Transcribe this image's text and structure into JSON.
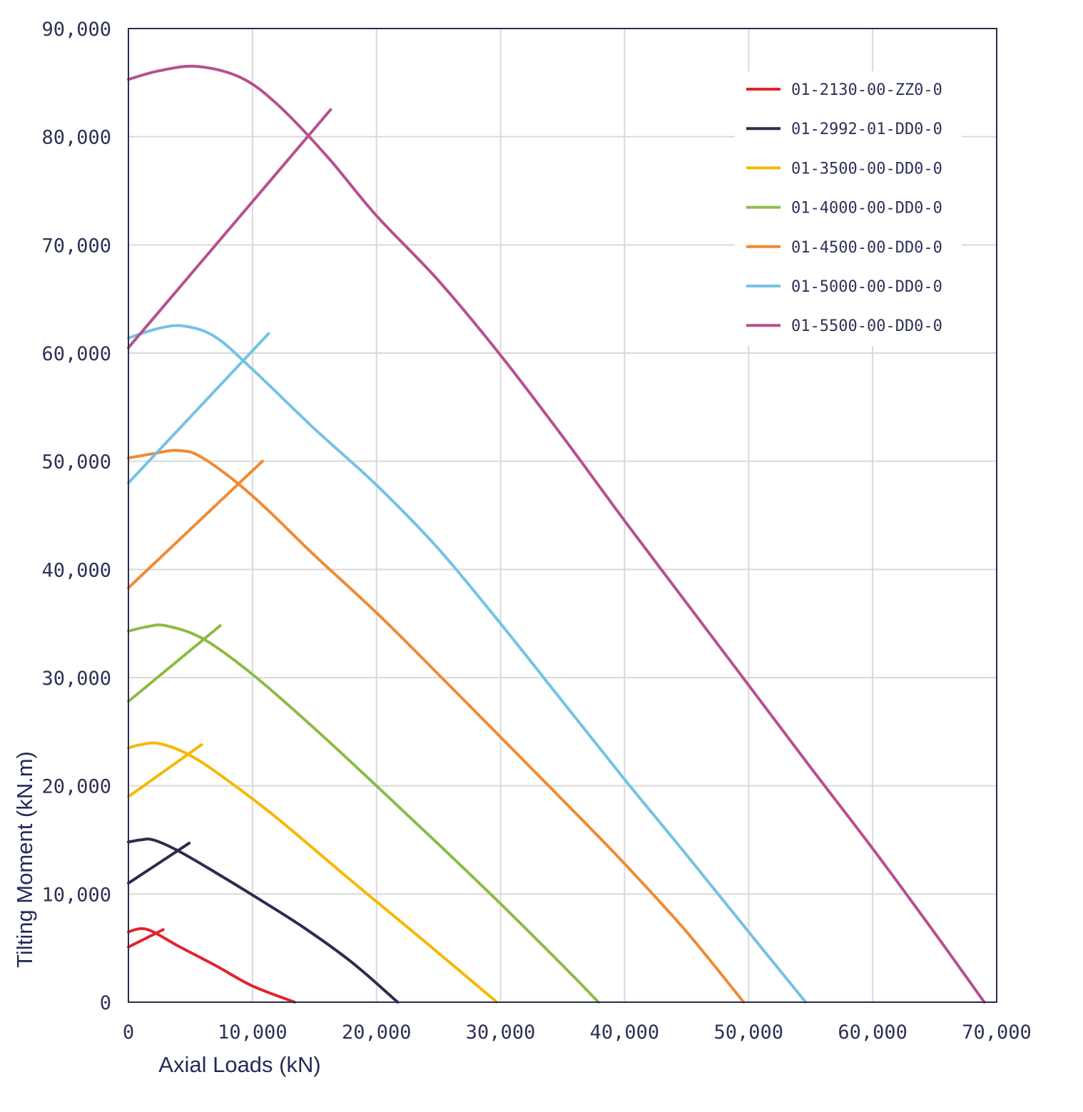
{
  "chart_data": {
    "type": "line",
    "title": "",
    "xlabel": "Axial Loads (kN)",
    "ylabel": "Tilting Moment (kN.m)",
    "xlim": [
      0,
      70000
    ],
    "ylim": [
      0,
      90000
    ],
    "xticks": [
      0,
      10000,
      20000,
      30000,
      40000,
      50000,
      60000,
      70000
    ],
    "yticks": [
      0,
      10000,
      20000,
      30000,
      40000,
      50000,
      60000,
      70000,
      80000,
      90000
    ],
    "xtick_labels": [
      "0",
      "10,000",
      "20,000",
      "30,000",
      "40,000",
      "50,000",
      "60,000",
      "70,000"
    ],
    "ytick_labels": [
      "0",
      "10,000",
      "20,000",
      "30,000",
      "40,000",
      "50,000",
      "60,000",
      "70,000",
      "80,000",
      "90,000"
    ],
    "grid": true,
    "legend_position": "top-right",
    "series": [
      {
        "name": "01-2130-00-ZZ0-0",
        "color": "#e0242f",
        "values": [
          [
            0,
            6500
          ],
          [
            1000,
            6800
          ],
          [
            2000,
            6500
          ],
          [
            4000,
            5200
          ],
          [
            7000,
            3400
          ],
          [
            10000,
            1500
          ],
          [
            13400,
            0
          ]
        ],
        "line": [
          [
            0,
            5100
          ],
          [
            2800,
            6700
          ]
        ]
      },
      {
        "name": "01-2992-01-DD0-0",
        "color": "#2a2c4f",
        "values": [
          [
            0,
            14800
          ],
          [
            1000,
            15000
          ],
          [
            2000,
            15000
          ],
          [
            4000,
            14000
          ],
          [
            7000,
            12000
          ],
          [
            10000,
            9900
          ],
          [
            14000,
            7000
          ],
          [
            18000,
            3700
          ],
          [
            21700,
            0
          ]
        ],
        "line": [
          [
            0,
            11000
          ],
          [
            4900,
            14700
          ]
        ]
      },
      {
        "name": "01-3500-00-DD0-0",
        "color": "#f5b800",
        "values": [
          [
            0,
            23500
          ],
          [
            1000,
            23800
          ],
          [
            2500,
            23900
          ],
          [
            5000,
            22800
          ],
          [
            8000,
            20500
          ],
          [
            12000,
            17000
          ],
          [
            18000,
            11200
          ],
          [
            24000,
            5500
          ],
          [
            29700,
            0
          ]
        ],
        "line": [
          [
            0,
            19000
          ],
          [
            5900,
            23800
          ]
        ]
      },
      {
        "name": "01-4000-00-DD0-0",
        "color": "#8bbb44",
        "values": [
          [
            0,
            34300
          ],
          [
            1500,
            34700
          ],
          [
            3000,
            34800
          ],
          [
            6000,
            33600
          ],
          [
            10000,
            30300
          ],
          [
            15000,
            25300
          ],
          [
            20000,
            20000
          ],
          [
            25000,
            14600
          ],
          [
            30000,
            9100
          ],
          [
            35000,
            3400
          ],
          [
            37900,
            0
          ]
        ],
        "line": [
          [
            0,
            27800
          ],
          [
            7400,
            34800
          ]
        ]
      },
      {
        "name": "01-4500-00-DD0-0",
        "color": "#ef8a32",
        "values": [
          [
            0,
            50300
          ],
          [
            2000,
            50700
          ],
          [
            4000,
            51000
          ],
          [
            6000,
            50300
          ],
          [
            10000,
            46800
          ],
          [
            15000,
            41300
          ],
          [
            20000,
            36000
          ],
          [
            25000,
            30300
          ],
          [
            30000,
            24500
          ],
          [
            35000,
            18700
          ],
          [
            40000,
            12800
          ],
          [
            45000,
            6500
          ],
          [
            49600,
            0
          ]
        ],
        "line": [
          [
            0,
            38300
          ],
          [
            10800,
            50000
          ]
        ]
      },
      {
        "name": "01-5000-00-DD0-0",
        "color": "#74c2e4",
        "values": [
          [
            0,
            61400
          ],
          [
            2500,
            62300
          ],
          [
            4500,
            62500
          ],
          [
            7000,
            61500
          ],
          [
            10000,
            58500
          ],
          [
            15000,
            53000
          ],
          [
            20000,
            47800
          ],
          [
            25000,
            41900
          ],
          [
            30000,
            35000
          ],
          [
            35000,
            27800
          ],
          [
            40000,
            20600
          ],
          [
            45000,
            13600
          ],
          [
            50000,
            6500
          ],
          [
            54600,
            0
          ]
        ],
        "line": [
          [
            0,
            48000
          ],
          [
            11300,
            61800
          ]
        ]
      },
      {
        "name": "01-5500-00-DD0-0",
        "color": "#b7508e",
        "values": [
          [
            0,
            85300
          ],
          [
            2500,
            86100
          ],
          [
            5500,
            86500
          ],
          [
            9000,
            85500
          ],
          [
            12000,
            83000
          ],
          [
            16000,
            78200
          ],
          [
            20000,
            72700
          ],
          [
            25000,
            66700
          ],
          [
            30000,
            59800
          ],
          [
            35000,
            52300
          ],
          [
            40000,
            44500
          ],
          [
            45000,
            36900
          ],
          [
            50000,
            29300
          ],
          [
            55000,
            21700
          ],
          [
            60000,
            14200
          ],
          [
            65000,
            6400
          ],
          [
            69000,
            0
          ]
        ],
        "line": [
          [
            0,
            60500
          ],
          [
            16300,
            82500
          ]
        ]
      }
    ]
  }
}
